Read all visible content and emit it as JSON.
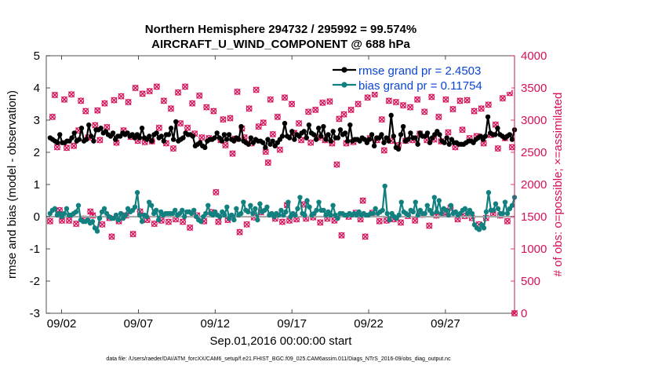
{
  "chart_data": {
    "type": "line",
    "title": "Northern Hemisphere 294732 / 295992 = 99.574%",
    "subtitle": "AIRCRAFT_U_WIND_COMPONENT @ 688 hPa",
    "xlabel": "Sep.01,2016 00:00:00 start",
    "ylabel_left": "rmse and bias (model - observation)",
    "ylabel_right": "# of obs: o=possible; ×=assimilated",
    "footer": "data file: /Users/raeder/DAI/ATM_forcXX/CAM6_setup/f.e21.FHIST_BGC.f09_025.CAM6assim.011/Diags_NTrS_2016-09/obs_diag_output.nc",
    "xlim": [
      1,
      31.5
    ],
    "ylim_left": [
      -3,
      5
    ],
    "ylim_right": [
      0,
      4000
    ],
    "x_ticks": [
      2,
      7,
      12,
      17,
      22,
      27
    ],
    "x_tick_labels": [
      "09/02",
      "09/07",
      "09/12",
      "09/17",
      "09/22",
      "09/27"
    ],
    "y_ticks_left": [
      -3,
      -2,
      -1,
      0,
      1,
      2,
      3,
      4,
      5
    ],
    "y_ticks_right": [
      0,
      500,
      1000,
      1500,
      2000,
      2500,
      3000,
      3500,
      4000
    ],
    "colors": {
      "rmse": "#000000",
      "bias": "#138080",
      "obs": "#d6105a",
      "legend_text": "#0a45d6",
      "zero_line": "#a8a8a8"
    },
    "series": [
      {
        "name": "rmse grand pr = 2.4503",
        "axis": "left",
        "values": [
          2.45,
          2.4,
          2.35,
          2.3,
          2.55,
          2.3,
          2.3,
          2.35,
          2.35,
          2.45,
          2.6,
          2.35,
          2.4,
          2.75,
          2.35,
          2.4,
          2.85,
          2.5,
          2.35,
          2.7,
          2.7,
          2.75,
          2.6,
          2.65,
          2.55,
          2.5,
          2.6,
          2.4,
          2.5,
          2.5,
          2.6,
          2.55,
          2.6,
          2.5,
          2.55,
          2.45,
          2.55,
          2.45,
          2.75,
          2.45,
          2.4,
          2.5,
          2.35,
          2.55,
          2.6,
          2.45,
          2.5,
          2.35,
          2.55,
          2.55,
          2.75,
          2.4,
          2.95,
          2.35,
          2.4,
          2.45,
          2.6,
          2.55,
          2.55,
          2.5,
          2.2,
          2.25,
          2.3,
          2.2,
          2.15,
          2.35,
          2.4,
          2.4,
          2.45,
          2.6,
          2.45,
          2.35,
          2.55,
          2.4,
          2.55,
          2.4,
          2.35,
          2.45,
          2.4,
          2.8,
          2.35,
          2.3,
          2.25,
          2.45,
          2.3,
          2.4,
          2.35,
          2.35,
          2.3,
          2.15,
          2.4,
          2.25,
          2.35,
          2.2,
          2.3,
          2.4,
          2.5,
          2.9,
          2.5,
          2.45,
          2.65,
          2.4,
          2.55,
          2.5,
          2.6,
          2.65,
          2.45,
          2.85,
          2.6,
          2.55,
          2.4,
          2.75,
          2.5,
          2.8,
          2.4,
          2.55,
          2.35,
          2.65,
          2.45,
          2.45,
          2.7,
          2.55,
          2.6,
          2.35,
          2.85,
          2.35,
          2.4,
          2.4,
          2.35,
          2.45,
          2.4,
          2.3,
          2.4,
          2.55,
          2.2,
          2.45,
          2.45,
          2.55,
          2.3,
          2.45,
          2.35,
          3.15,
          2.5,
          2.15,
          2.1,
          2.55,
          2.8,
          2.35,
          2.4,
          2.6,
          2.45,
          2.45,
          2.25,
          2.6,
          2.5,
          2.5,
          2.6,
          2.3,
          2.45,
          2.55,
          2.65,
          2.55,
          2.35,
          2.3,
          2.45,
          2.25,
          2.4,
          2.3,
          2.3,
          2.25,
          2.25,
          2.25,
          2.3,
          2.35,
          2.35,
          2.3,
          2.4,
          2.45,
          2.5,
          2.4,
          2.5,
          3.1,
          2.6,
          2.55,
          2.55,
          2.75,
          2.55,
          2.5,
          2.45,
          2.5,
          2.55,
          2.4,
          2.7
        ]
      },
      {
        "name": "bias grand pr = 0.11754",
        "axis": "left",
        "values": [
          0.1,
          0.2,
          0.25,
          0.05,
          0.1,
          0.0,
          0.1,
          0.25,
          0.05,
          0.05,
          0.1,
          0.15,
          0.35,
          -0.1,
          -0.15,
          -0.15,
          -0.1,
          -0.2,
          -0.15,
          -0.35,
          -0.45,
          -0.05,
          0.15,
          0.25,
          0.1,
          0.0,
          -0.05,
          -0.05,
          0.05,
          -0.1,
          0.1,
          -0.05,
          0.05,
          0.25,
          0.15,
          0.2,
          0.3,
          0.75,
          0.05,
          -0.15,
          0.05,
          0.0,
          0.45,
          0.35,
          0.1,
          0.2,
          -0.1,
          0.15,
          0.05,
          0.1,
          0.1,
          0.1,
          0.1,
          0.2,
          0.05,
          0.1,
          0.2,
          0.0,
          0.15,
          0.15,
          0.1,
          0.2,
          0.0,
          -0.1,
          -0.15,
          0.0,
          0.1,
          0.35,
          0.1,
          0.05,
          0.15,
          0.05,
          0.0,
          0.15,
          0.05,
          0.3,
          -0.05,
          0.05,
          -0.1,
          0.25,
          0.05,
          0.1,
          0.45,
          0.2,
          0.15,
          0.35,
          0.1,
          0.25,
          -0.1,
          0.4,
          0.15,
          0.2,
          0.3,
          0.05,
          0.1,
          0.0,
          0.1,
          0.05,
          0.2,
          0.05,
          0.15,
          0.45,
          0.0,
          0.1,
          0.05,
          0.25,
          0.6,
          0.1,
          0.05,
          0.5,
          0.3,
          0.05,
          0.1,
          0.2,
          0.45,
          0.2,
          0.2,
          0.05,
          0.15,
          0.05,
          0.35,
          0.05,
          -0.05,
          0.1,
          0.1,
          0.05,
          0.05,
          0.1,
          0.05,
          0.1,
          0.05,
          0.15,
          0.05,
          0.1,
          0.05,
          0.05,
          0.1,
          0.1,
          0.25,
          0.1,
          0.15,
          0.2,
          0.95,
          0.1,
          -0.1,
          0.1,
          0.0,
          -0.05,
          0.05,
          0.45,
          0.15,
          0.1,
          0.05,
          0.2,
          0.15,
          0.45,
          0.05,
          0.2,
          0.1,
          0.1,
          0.35,
          0.2,
          0.1,
          0.6,
          0.15,
          0.5,
          0.1,
          0.25,
          0.2,
          0.05,
          0.35,
          0.1,
          0.15,
          0.05,
          0.1,
          0.2,
          0.25,
          0.1,
          0.2,
          0.1,
          -0.25,
          -0.35,
          -0.4,
          -0.25,
          -0.35,
          0.15,
          0.75,
          0.2,
          0.2,
          0.4,
          0.25,
          0.1,
          0.1,
          0.45,
          0.1,
          0.25,
          0.35,
          0.6
        ]
      },
      {
        "name": "obs possible/assimilated",
        "axis": "right",
        "values": [
          1430,
          3050,
          3390,
          2580,
          1600,
          1440,
          3320,
          2570,
          1440,
          3400,
          2600,
          1390,
          2840,
          3300,
          1470,
          3140,
          2730,
          1580,
          1520,
          2920,
          3150,
          2690,
          1380,
          3260,
          2890,
          1480,
          1190,
          3310,
          2650,
          1430,
          3370,
          2840,
          1520,
          3280,
          2740,
          1230,
          3500,
          2680,
          1580,
          3410,
          2660,
          1450,
          3450,
          2670,
          1390,
          3520,
          2880,
          1440,
          3300,
          2640,
          1420,
          3180,
          2560,
          1460,
          3430,
          2950,
          1420,
          3520,
          2880,
          1330,
          3260,
          2790,
          1520,
          3380,
          2730,
          1430,
          3200,
          2720,
          1570,
          3140,
          1880,
          1420,
          2690,
          3010,
          2610,
          1450,
          3030,
          2480,
          2710,
          3440,
          1260,
          2870,
          2730,
          1380,
          3180,
          2640,
          1490,
          3470,
          2900,
          1570,
          2960,
          2510,
          2340,
          3320,
          2780,
          1470,
          3050,
          2540,
          1420,
          3350,
          1680,
          1440,
          3250,
          2800,
          1460,
          2950,
          2690,
          1690,
          1470,
          3130,
          2650,
          1490,
          3160,
          2730,
          1410,
          3270,
          2690,
          1470,
          3290,
          2640,
          1440,
          2310,
          3020,
          1210,
          3090,
          2640,
          1500,
          3160,
          2660,
          1560,
          3250,
          1460,
          1750,
          1190,
          3350,
          2720,
          1560,
          3400,
          2690,
          1430,
          3010,
          2530,
          1440,
          3300,
          2680,
          1460,
          3280,
          2610,
          1410,
          3230,
          2680,
          1510,
          3200,
          2690,
          1440,
          3320,
          2790,
          1530,
          3130,
          2690,
          1360,
          3360,
          2700,
          1520,
          3050,
          2670,
          1560,
          3320,
          2810,
          1640,
          3170,
          2580,
          1460,
          3300,
          2850,
          1510,
          3310,
          2720,
          1480,
          3140,
          2750,
          1380,
          3180,
          2640,
          1480,
          3240,
          2770,
          1540,
          2930,
          2560,
          1520,
          3340,
          2720,
          1430,
          3420,
          2580,
          0
        ]
      }
    ]
  }
}
